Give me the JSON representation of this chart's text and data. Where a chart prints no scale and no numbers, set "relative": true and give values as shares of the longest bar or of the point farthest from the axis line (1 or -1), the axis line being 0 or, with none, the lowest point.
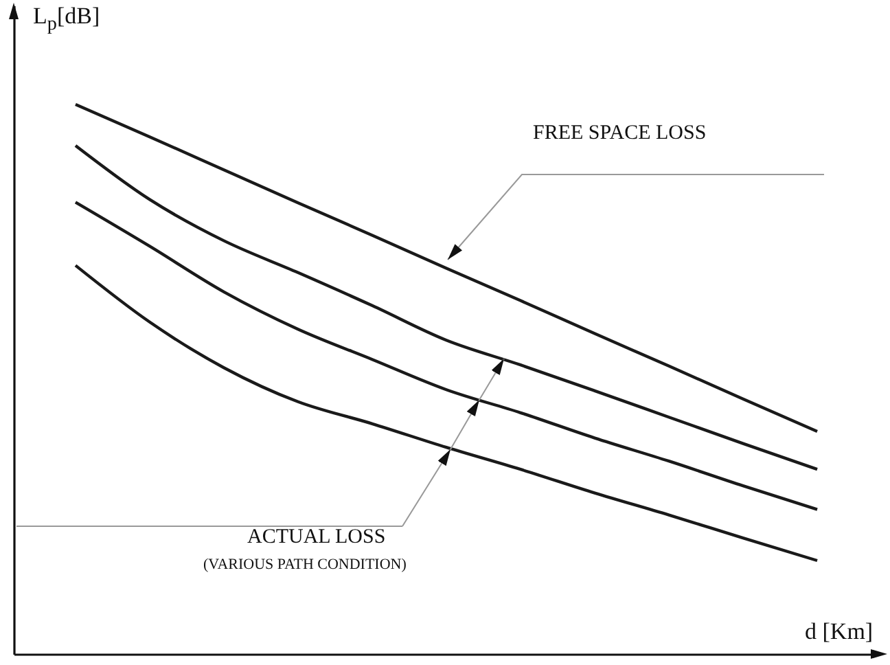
{
  "chart_data": {
    "type": "line",
    "relative": true,
    "xlabel": "d [Km]",
    "ylabel": "L$_{p}$[dB]",
    "categories": [
      null,
      null,
      null,
      null,
      null,
      null,
      null,
      null,
      null,
      null,
      null
    ],
    "series": [
      {
        "color": "#1a1a1a",
        "values": [
          1,
          0.941,
          0.881,
          0.821,
          0.762,
          0.702,
          0.643,
          0.583,
          0.524,
          0.464,
          0.405
        ]
      },
      {
        "color": "#1a1a1a",
        "values": [
          0.925,
          0.827,
          0.752,
          0.694,
          0.634,
          0.571,
          0.526,
          0.479,
          0.431,
          0.383,
          0.336
        ]
      },
      {
        "color": "#1a1a1a",
        "values": [
          0.822,
          0.742,
          0.659,
          0.591,
          0.536,
          0.481,
          0.439,
          0.393,
          0.351,
          0.306,
          0.263
        ]
      },
      {
        "color": "#1a1a1a",
        "values": [
          0.707,
          0.604,
          0.521,
          0.459,
          0.419,
          0.376,
          0.336,
          0.293,
          0.253,
          0.211,
          0.17
        ]
      }
    ],
    "annotations": [
      "FREE SPACE LOSS",
      "ACTUAL LOSS",
      "(VARIOUS PATH CONDITION)"
    ],
    "grid": false
  }
}
